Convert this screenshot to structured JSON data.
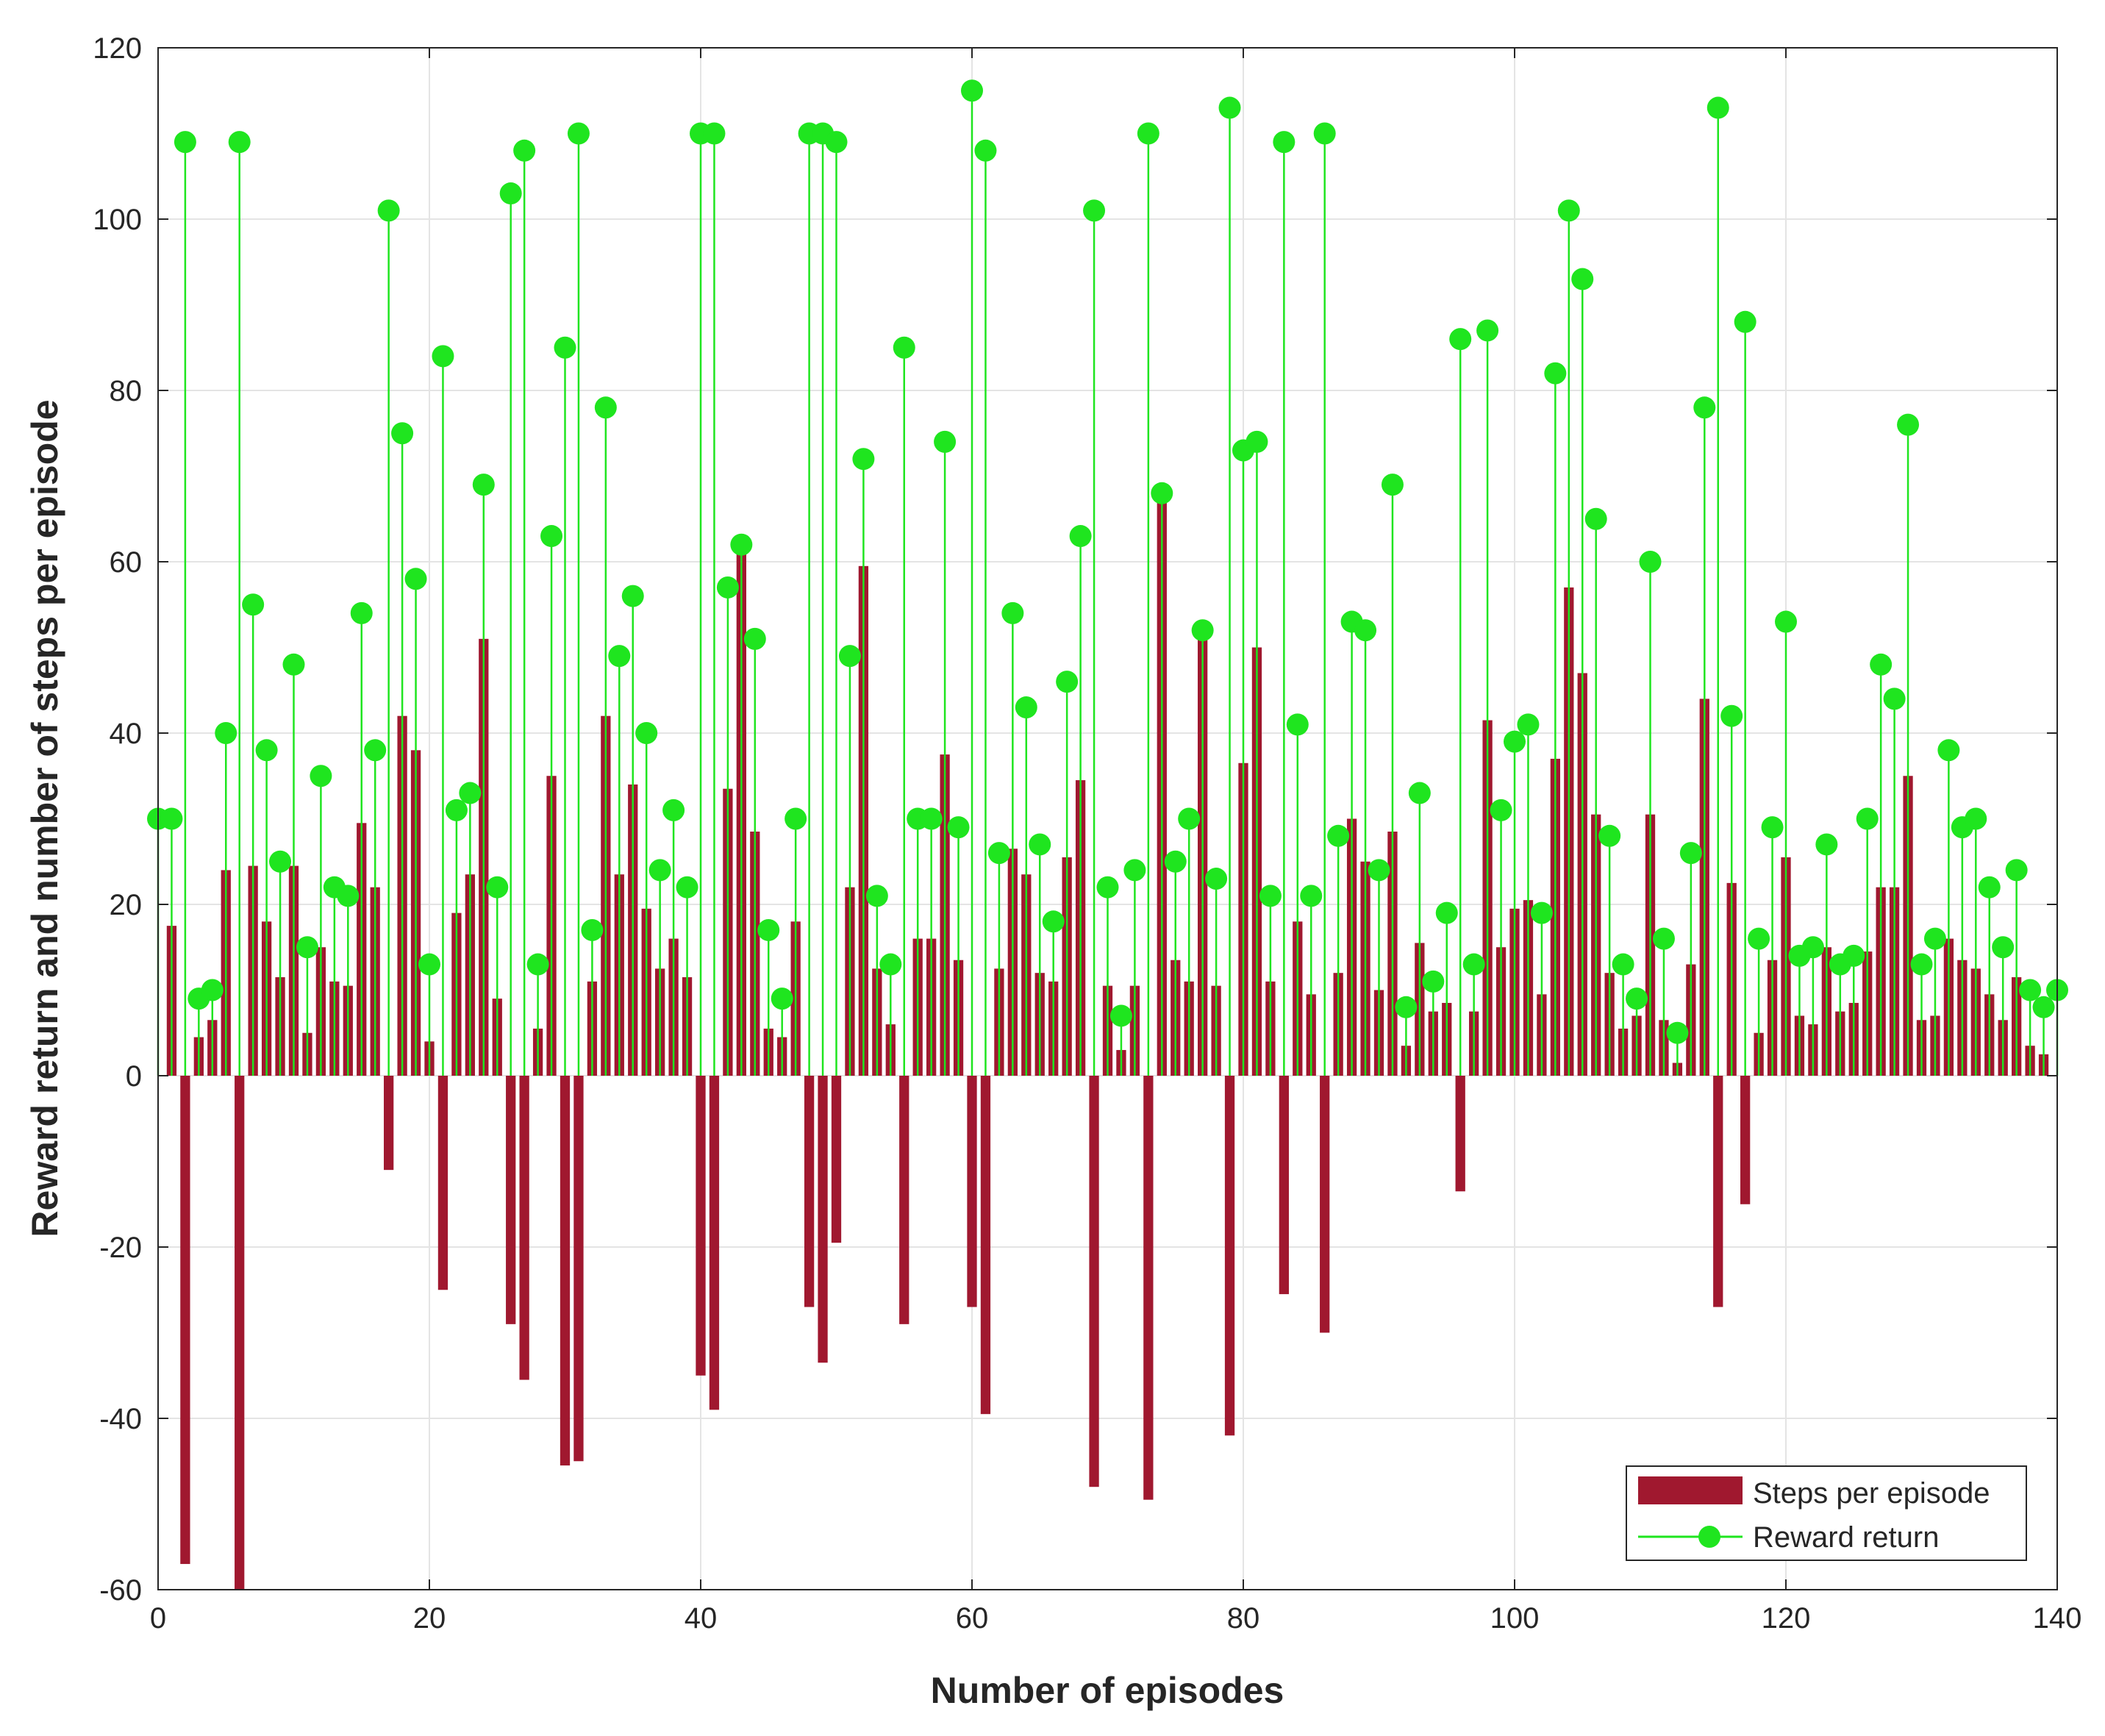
{
  "chart_data": {
    "type": "bar+stem",
    "title": "",
    "xlabel": "Number of episodes",
    "ylabel": "Reward return and number of steps per episode",
    "xlim": [
      0,
      140
    ],
    "ylim": [
      -60,
      120
    ],
    "xticks": [
      0,
      20,
      40,
      60,
      80,
      100,
      120,
      140
    ],
    "yticks": [
      -60,
      -40,
      -20,
      0,
      20,
      40,
      60,
      80,
      100,
      120
    ],
    "grid": true,
    "legend_position": "bottom-right",
    "series": [
      {
        "name": "Steps per episode",
        "kind": "bar",
        "color": "#A0182F",
        "x": [
          1,
          2,
          3,
          4,
          5,
          6,
          7,
          8,
          9,
          10,
          11,
          12,
          13,
          14,
          15,
          16,
          17,
          18,
          19,
          20,
          21,
          22,
          23,
          24,
          25,
          26,
          27,
          28,
          29,
          30,
          31,
          32,
          33,
          34,
          35,
          36,
          37,
          38,
          39,
          40,
          41,
          42,
          43,
          44,
          45,
          46,
          47,
          48,
          49,
          50,
          51,
          52,
          53,
          54,
          55,
          56,
          57,
          58,
          59,
          60,
          61,
          62,
          63,
          64,
          65,
          66,
          67,
          68,
          69,
          70,
          71,
          72,
          73,
          74,
          75,
          76,
          77,
          78,
          79,
          80,
          81,
          82,
          83,
          84,
          85,
          86,
          87,
          88,
          89,
          90,
          91,
          92,
          93,
          94,
          95,
          96,
          97,
          98,
          99,
          100,
          101,
          102,
          103,
          104,
          105,
          106,
          107,
          108,
          109,
          110,
          111,
          112,
          113,
          114,
          115,
          116,
          117,
          118,
          119,
          120,
          121,
          122,
          123,
          124,
          125,
          126,
          127,
          128,
          129,
          130,
          131,
          132,
          133,
          134,
          135,
          136,
          137,
          138,
          139
        ],
        "values": [
          17.5,
          -57,
          4.5,
          6.5,
          24,
          -60,
          24.5,
          18,
          11.5,
          24.5,
          5,
          15,
          11,
          10.5,
          29.5,
          22,
          -11,
          42,
          38,
          4,
          -25,
          19,
          23.5,
          51,
          9,
          -29,
          -35.5,
          5.5,
          35,
          -45.5,
          -45,
          11,
          42,
          23.5,
          34,
          19.5,
          12.5,
          16,
          11.5,
          -35,
          -39,
          33.5,
          61,
          28.5,
          5.5,
          4.5,
          18,
          -27,
          -33.5,
          -19.5,
          22,
          59.5,
          12.5,
          6,
          -29,
          16,
          16,
          37.5,
          13.5,
          -27,
          -39.5,
          12.5,
          26.5,
          23.5,
          12,
          11,
          25.5,
          34.5,
          -48,
          10.5,
          3,
          10.5,
          -49.5,
          67.5,
          13.5,
          11,
          51,
          10.5,
          -42,
          36.5,
          50,
          11,
          -25.5,
          18,
          9.5,
          -30,
          12,
          30,
          25,
          10,
          28.5,
          3.5,
          15.5,
          7.5,
          8.5,
          -13.5,
          7.5,
          41.5,
          15,
          19.5,
          20.5,
          9.5,
          37,
          57,
          47,
          30.5,
          12,
          5.5,
          7,
          30.5,
          6.5,
          1.5,
          13,
          44,
          -27,
          22.5,
          -15,
          5,
          13.5,
          25.5,
          7,
          6,
          15,
          7.5,
          8.5,
          14.5,
          22,
          22,
          35,
          6.5,
          7,
          16,
          13.5,
          12.5,
          9.5,
          6.5,
          11.5,
          3.5,
          2.5
        ]
      },
      {
        "name": "Reward return",
        "kind": "stem",
        "color": "#1FE51F",
        "x": [
          0,
          1,
          2,
          3,
          4,
          5,
          6,
          7,
          8,
          9,
          10,
          11,
          12,
          13,
          14,
          15,
          16,
          17,
          18,
          19,
          20,
          21,
          22,
          23,
          24,
          25,
          26,
          27,
          28,
          29,
          30,
          31,
          32,
          33,
          34,
          35,
          36,
          37,
          38,
          39,
          40,
          41,
          42,
          43,
          44,
          45,
          46,
          47,
          48,
          49,
          50,
          51,
          52,
          53,
          54,
          55,
          56,
          57,
          58,
          59,
          60,
          61,
          62,
          63,
          64,
          65,
          66,
          67,
          68,
          69,
          70,
          71,
          72,
          73,
          74,
          75,
          76,
          77,
          78,
          79,
          80,
          81,
          82,
          83,
          84,
          85,
          86,
          87,
          88,
          89,
          90,
          91,
          92,
          93,
          94,
          95,
          96,
          97,
          98,
          99,
          100,
          101,
          102,
          103,
          104,
          105,
          106,
          107,
          108,
          109,
          110,
          111,
          112,
          113,
          114,
          115,
          116,
          117,
          118,
          119,
          120,
          121,
          122,
          123,
          124,
          125,
          126,
          127,
          128,
          129,
          130,
          131,
          132,
          133,
          134,
          135,
          136,
          137,
          138,
          139,
          140
        ],
        "values": [
          30,
          30,
          109,
          9,
          10,
          40,
          109,
          55,
          38,
          25,
          48,
          15,
          35,
          22,
          21,
          54,
          38,
          101,
          75,
          58,
          13,
          84,
          31,
          33,
          69,
          22,
          103,
          108,
          13,
          63,
          85,
          110,
          17,
          78,
          49,
          56,
          40,
          24,
          31,
          22,
          110,
          110,
          57,
          62,
          51,
          17,
          9,
          30,
          110,
          110,
          109,
          49,
          72,
          21,
          13,
          85,
          30,
          30,
          74,
          29,
          115,
          108,
          26,
          54,
          43,
          27,
          18,
          46,
          63,
          101,
          22,
          7,
          24,
          110,
          68,
          25,
          30,
          52,
          23,
          113,
          73,
          74,
          21,
          109,
          41,
          21,
          110,
          28,
          53,
          52,
          24,
          69,
          8,
          33,
          11,
          19,
          86,
          13,
          87,
          31,
          39,
          41,
          19,
          82,
          101,
          93,
          65,
          28,
          13,
          9,
          60,
          16,
          5,
          26,
          78,
          113,
          42,
          88,
          16,
          29,
          53,
          14,
          15,
          27,
          13,
          14,
          30,
          48,
          44,
          76,
          13,
          16,
          38,
          29,
          30,
          22,
          15,
          24,
          10,
          8,
          10
        ]
      }
    ]
  }
}
